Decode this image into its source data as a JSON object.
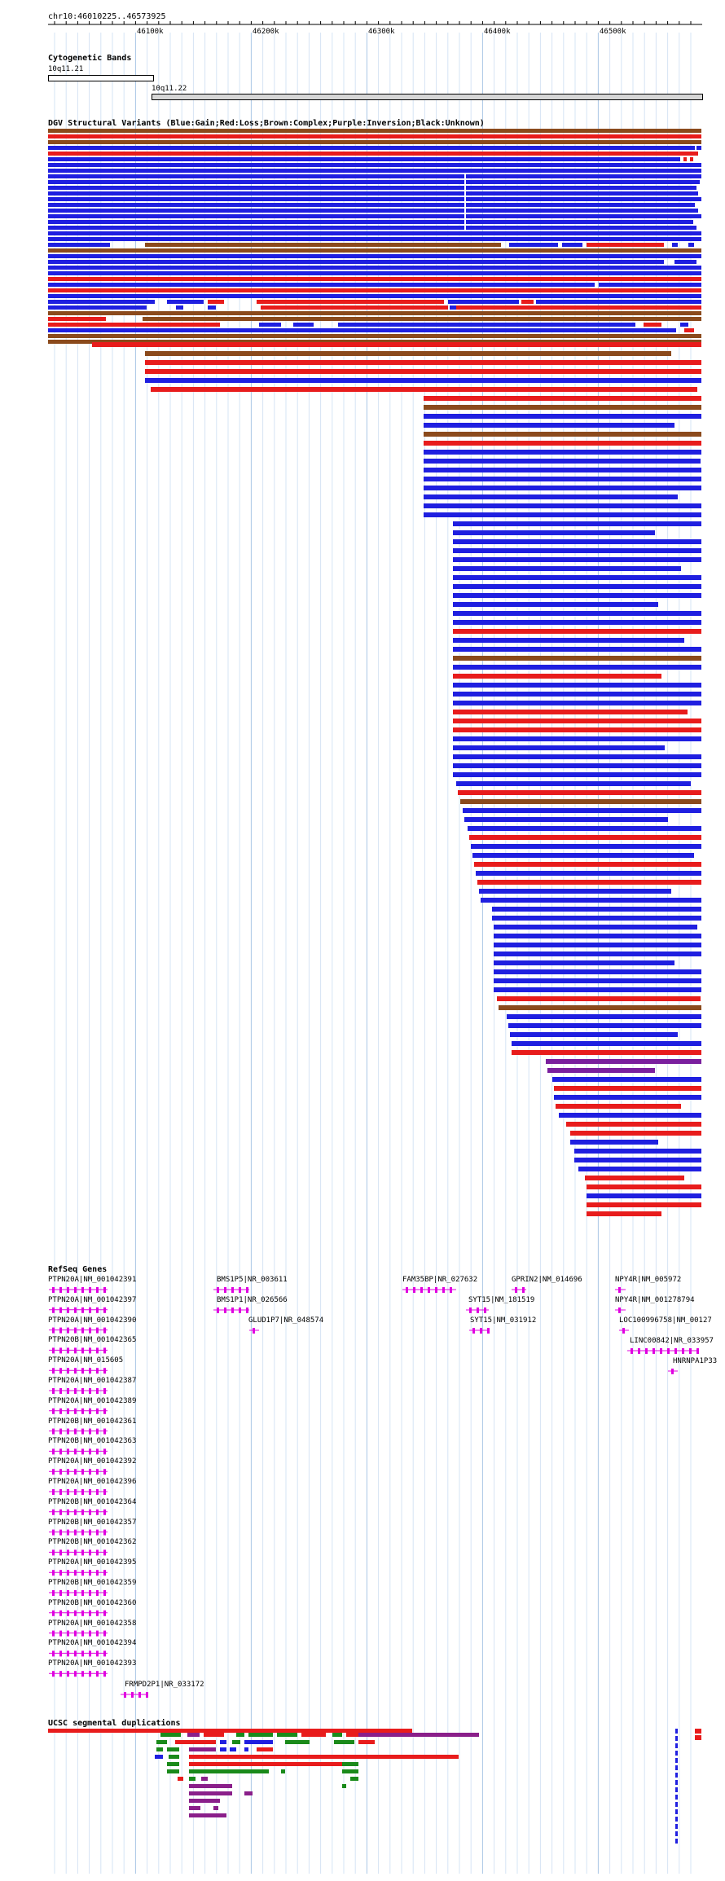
{
  "position": "chr10:46010225..46573925",
  "ruler": {
    "ticks": [
      "46100k",
      "46200k",
      "46300k",
      "46400k",
      "46500k"
    ]
  },
  "tracks": {
    "cytoband": {
      "title": "Cytogenetic Bands",
      "bands": [
        {
          "label": "10q11.21"
        },
        {
          "label": "10q11.22"
        }
      ]
    },
    "dgv": {
      "title": "DGV Structural Variants (Blue:Gain;Red:Loss;Brown:Complex;Purple:Inversion;Black:Unknown)",
      "colors": {
        "gain": "#1f1fe0",
        "loss": "#e81c1c",
        "complex": "#8b4a1c",
        "inversion": "#7a1f9e",
        "unknown": "#000000"
      }
    },
    "refseq": {
      "title": "RefSeq Genes",
      "gene_color": "#e000e0",
      "genes": [
        {
          "label": "PTPN20A|NM_001042391"
        },
        {
          "label": "PTPN20A|NM_001042397"
        },
        {
          "label": "PTPN20A|NM_001042390"
        },
        {
          "label": "PTPN20B|NM_001042365"
        },
        {
          "label": "PTPN20A|NM_015605"
        },
        {
          "label": "PTPN20A|NM_001042387"
        },
        {
          "label": "PTPN20A|NM_001042389"
        },
        {
          "label": "PTPN20B|NM_001042361"
        },
        {
          "label": "PTPN20B|NM_001042363"
        },
        {
          "label": "PTPN20A|NM_001042392"
        },
        {
          "label": "PTPN20A|NM_001042396"
        },
        {
          "label": "PTPN20B|NM_001042364"
        },
        {
          "label": "PTPN20B|NM_001042357"
        },
        {
          "label": "PTPN20B|NM_001042362"
        },
        {
          "label": "PTPN20A|NM_001042395"
        },
        {
          "label": "PTPN20B|NM_001042359"
        },
        {
          "label": "PTPN20B|NM_001042360"
        },
        {
          "label": "PTPN20A|NM_001042358"
        },
        {
          "label": "PTPN20A|NM_001042394"
        },
        {
          "label": "PTPN20A|NM_001042393"
        },
        {
          "label": "FRMPD2P1|NR_033172"
        },
        {
          "label": "BMS1P5|NR_003611"
        },
        {
          "label": "BMS1P1|NR_026566"
        },
        {
          "label": "GLUD1P7|NR_048574"
        },
        {
          "label": "FAM35BP|NR_027632"
        },
        {
          "label": "GPRIN2|NM_014696"
        },
        {
          "label": "SYT15|NM_181519"
        },
        {
          "label": "SYT15|NM_031912"
        },
        {
          "label": "NPY4R|NM_005972"
        },
        {
          "label": "NPY4R|NM_001278794"
        },
        {
          "label": "LOC100996758|NM_00127"
        },
        {
          "label": "LINC00842|NR_033957"
        },
        {
          "label": "HNRNPA1P33"
        }
      ]
    },
    "segdup": {
      "title": "UCSC segmental duplications",
      "colors": {
        "red": "#e81c1c",
        "purple": "#8a1f8a",
        "green": "#1a8a1a",
        "blue": "#1f1fe0"
      }
    }
  }
}
